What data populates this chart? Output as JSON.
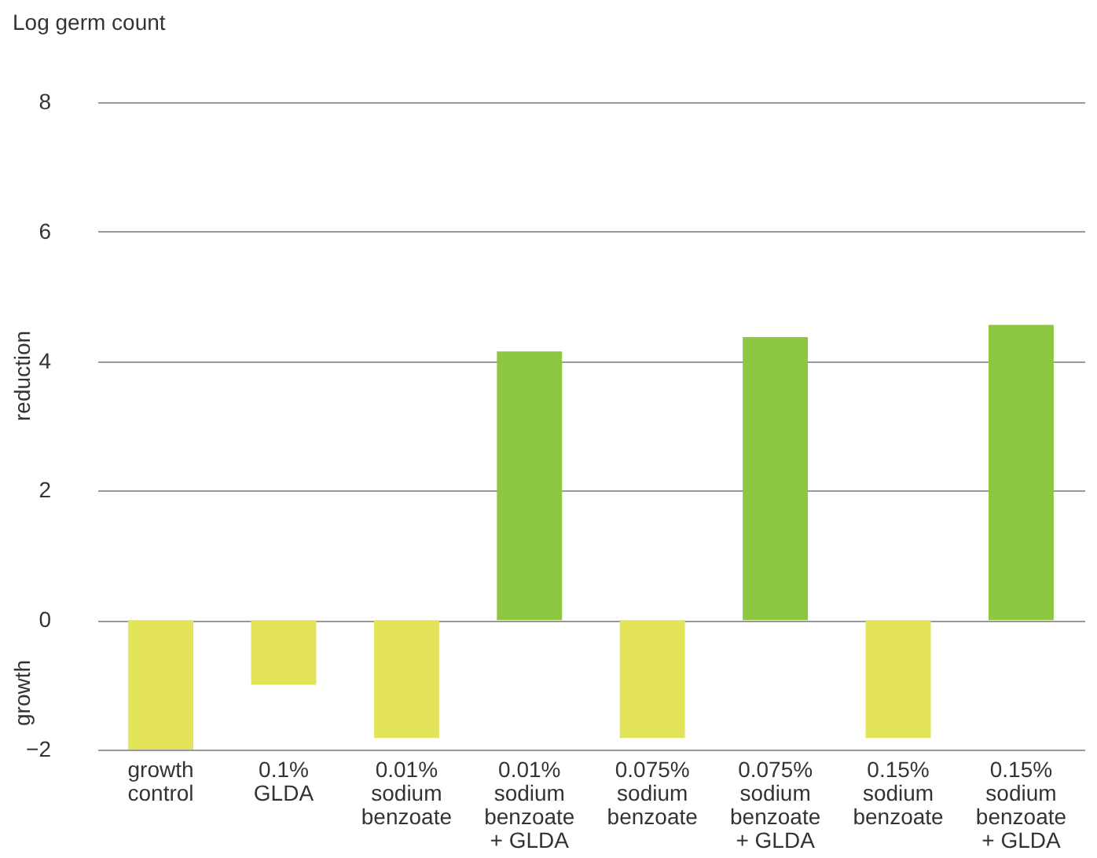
{
  "chart_data": {
    "type": "bar",
    "title": "Log germ count",
    "annotations": [
      "reduction",
      "growth"
    ],
    "categories": [
      "growth\ncontrol",
      "0.1%\nGLDA",
      "0.01%\nsodium\nbenzoate",
      "0.01%\nsodium\nbenzoate\n+ GLDA",
      "0.075%\nsodium\nbenzoate",
      "0.075%\nsodium\nbenzoate\n+ GLDA",
      "0.15%\nsodium\nbenzoate",
      "0.15%\nsodium\nbenzoate\n+ GLDA"
    ],
    "values": [
      -2.0,
      -1.0,
      -1.82,
      4.15,
      -1.82,
      4.37,
      -1.82,
      4.56
    ],
    "colors": [
      "#e3e35a",
      "#e3e35a",
      "#e3e35a",
      "#8dc63f",
      "#e3e35a",
      "#8dc63f",
      "#e3e35a",
      "#8dc63f"
    ],
    "ylim": [
      -2,
      8
    ],
    "yticks": [
      -2,
      0,
      2,
      4,
      6,
      8
    ],
    "grid": "y"
  }
}
